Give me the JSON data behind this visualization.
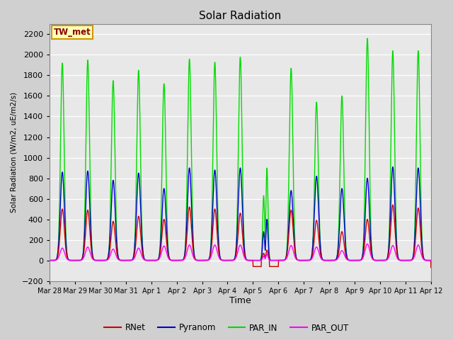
{
  "title": "Solar Radiation",
  "ylabel": "Solar Radiation (W/m2, uE/m2/s)",
  "xlabel": "Time",
  "ylim": [
    -200,
    2300
  ],
  "yticks": [
    -200,
    0,
    200,
    400,
    600,
    800,
    1000,
    1200,
    1400,
    1600,
    1800,
    2000,
    2200
  ],
  "legend_label": "TW_met",
  "series": {
    "RNet": {
      "color": "#cc0000",
      "lw": 1.0
    },
    "Pyranom": {
      "color": "#0000cc",
      "lw": 1.0
    },
    "PAR_IN": {
      "color": "#00dd00",
      "lw": 1.0
    },
    "PAR_OUT": {
      "color": "#ff00ff",
      "lw": 1.0
    }
  },
  "fig_bg": "#d0d0d0",
  "plot_bg": "#e8e8e8",
  "n_days": 15,
  "peaks_rnet": [
    500,
    490,
    380,
    430,
    400,
    520,
    500,
    460,
    100,
    490,
    390,
    280,
    400,
    540,
    510
  ],
  "peaks_pyranom": [
    860,
    870,
    780,
    850,
    700,
    900,
    880,
    900,
    400,
    680,
    820,
    700,
    800,
    910,
    900
  ],
  "peaks_par_in": [
    1920,
    1950,
    1750,
    1850,
    1720,
    1960,
    1930,
    1980,
    900,
    1870,
    1540,
    1600,
    2160,
    2040,
    2040
  ],
  "peaks_par_out": [
    120,
    130,
    110,
    120,
    140,
    150,
    150,
    150,
    60,
    145,
    130,
    95,
    160,
    145,
    150
  ],
  "tick_labels": [
    "Mar 28",
    "Mar 29",
    "Mar 30",
    "Mar 31",
    "Apr 1",
    "Apr 2",
    "Apr 3",
    "Apr 4",
    "Apr 5",
    "Apr 6",
    "Apr 7",
    "Apr 8",
    "Apr 9",
    "Apr 10",
    "Apr 11",
    "Apr 12"
  ]
}
